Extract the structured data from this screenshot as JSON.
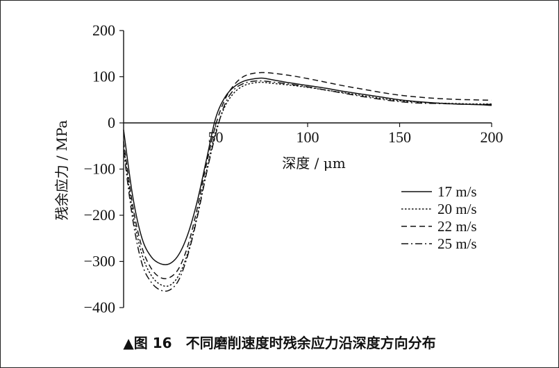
{
  "chart_data": {
    "type": "line",
    "title": "",
    "xlabel": "深度 / μm",
    "ylabel": "残余应力 / MPa",
    "xlim": [
      0,
      200
    ],
    "ylim": [
      -400,
      200
    ],
    "xticks": [
      50,
      100,
      150,
      200
    ],
    "yticks": [
      200,
      100,
      0,
      -100,
      -200,
      -300,
      -400
    ],
    "ytick_labels": [
      "200",
      "100",
      "0",
      "−100",
      "−200",
      "−300",
      "−400"
    ],
    "grid": false,
    "legend_position": "right",
    "series": [
      {
        "name": "17 m/s",
        "style": "solid",
        "x": [
          0,
          5,
          10,
          15,
          20,
          25,
          30,
          35,
          40,
          45,
          50,
          55,
          60,
          65,
          70,
          75,
          80,
          90,
          100,
          110,
          120,
          130,
          140,
          150,
          160,
          170,
          180,
          190,
          200
        ],
        "y": [
          -15,
          -160,
          -250,
          -290,
          -305,
          -305,
          -285,
          -240,
          -170,
          -80,
          10,
          55,
          78,
          90,
          95,
          97,
          94,
          87,
          81,
          75,
          68,
          62,
          56,
          50,
          46,
          43,
          41,
          40,
          38
        ]
      },
      {
        "name": "20 m/s",
        "style": "dotted",
        "x": [
          0,
          5,
          10,
          15,
          20,
          25,
          30,
          35,
          40,
          45,
          50,
          55,
          60,
          65,
          70,
          75,
          80,
          90,
          100,
          110,
          120,
          130,
          140,
          150,
          160,
          170,
          180,
          190,
          200
        ],
        "y": [
          -50,
          -195,
          -285,
          -330,
          -350,
          -352,
          -330,
          -280,
          -200,
          -105,
          -20,
          35,
          65,
          80,
          86,
          88,
          86,
          82,
          77,
          71,
          65,
          59,
          53,
          48,
          45,
          43,
          42,
          41,
          41
        ]
      },
      {
        "name": "22 m/s",
        "style": "dashed",
        "x": [
          0,
          5,
          10,
          15,
          20,
          25,
          30,
          35,
          40,
          45,
          50,
          55,
          60,
          65,
          70,
          75,
          80,
          90,
          100,
          110,
          120,
          130,
          140,
          150,
          160,
          170,
          180,
          190,
          200
        ],
        "y": [
          -40,
          -180,
          -270,
          -315,
          -335,
          -335,
          -315,
          -265,
          -185,
          -90,
          -5,
          50,
          82,
          100,
          107,
          109,
          108,
          103,
          96,
          88,
          80,
          73,
          66,
          60,
          56,
          53,
          51,
          50,
          49
        ]
      },
      {
        "name": "25 m/s",
        "style": "dashdot",
        "x": [
          0,
          5,
          10,
          15,
          20,
          25,
          30,
          35,
          40,
          45,
          50,
          55,
          60,
          65,
          70,
          75,
          80,
          90,
          100,
          110,
          120,
          130,
          140,
          150,
          160,
          170,
          180,
          190,
          200
        ],
        "y": [
          -60,
          -210,
          -305,
          -345,
          -362,
          -362,
          -340,
          -285,
          -205,
          -110,
          -25,
          40,
          72,
          85,
          90,
          91,
          89,
          84,
          78,
          71,
          64,
          57,
          51,
          46,
          43,
          42,
          41,
          40,
          40
        ]
      }
    ]
  },
  "caption": "▲图 16　不同磨削速度时残余应力沿深度方向分布"
}
